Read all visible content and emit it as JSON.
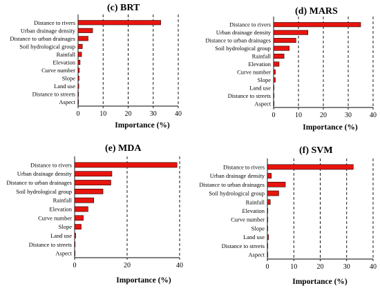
{
  "chart_data": [
    {
      "type": "bar",
      "orientation": "horizontal",
      "title": "(c) BRT",
      "xlabel": "Importance (%)",
      "xlim": [
        0,
        40
      ],
      "xticks": [
        0,
        10,
        20,
        30,
        40
      ],
      "grid": "vertical dashed",
      "categories": [
        "Distance to rivers",
        "Urban drainage density",
        "Distance to urban drainages",
        "Soil hydrological group",
        "Rainfall",
        "Elevation",
        "Curve number",
        "Slope",
        "Land use",
        "Distance to streets",
        "Aspect"
      ],
      "values": [
        33,
        5.8,
        4.0,
        1.7,
        1.4,
        0.8,
        0.5,
        0.4,
        0.3,
        0.15,
        0.1
      ]
    },
    {
      "type": "bar",
      "orientation": "horizontal",
      "title": "(d) MARS",
      "xlabel": "Importance (%)",
      "xlim": [
        0,
        40
      ],
      "xticks": [
        0,
        10,
        20,
        30,
        40
      ],
      "grid": "vertical dashed",
      "categories": [
        "Distance to rivers",
        "Urban drainage density",
        "Distance to urban drainages",
        "Soil hydrological group",
        "Rainfall",
        "Elevation",
        "Curve number",
        "Slope",
        "Land use",
        "Distance to streets",
        "Aspect"
      ],
      "values": [
        35,
        13.8,
        9.0,
        6.3,
        4.2,
        2.2,
        0.7,
        0.7,
        0.1,
        0.1,
        0.1
      ]
    },
    {
      "type": "bar",
      "orientation": "horizontal",
      "title": "(e) MDA",
      "xlabel": "Importance (%)",
      "xlim": [
        0,
        40
      ],
      "xticks": [
        0,
        20,
        40
      ],
      "grid": "vertical dashed",
      "categories": [
        "Distance to rivers",
        "Urban drainage density",
        "Distance to urban drainages",
        "Soil hydrological group",
        "Rainfall",
        "Elevation",
        "Curve number",
        "Slope",
        "Land use",
        "Distance to streets",
        "Aspect"
      ],
      "values": [
        39,
        14.2,
        13.8,
        10.8,
        7.3,
        5.1,
        3.3,
        2.5,
        0.4,
        0.2,
        0.1
      ]
    },
    {
      "type": "bar",
      "orientation": "horizontal",
      "title": "(f) SVM",
      "xlabel": "Importance (%)",
      "xlim": [
        0,
        40
      ],
      "xticks": [
        0,
        10,
        20,
        30,
        40
      ],
      "grid": "vertical dashed",
      "categories": [
        "Distance to rivers",
        "Urban drainage density",
        "Distance to urban drainages",
        "Soil hydrological group",
        "Rainfall",
        "Elevation",
        "Curve number",
        "Slope",
        "Land use",
        "Distance to streets",
        "Aspect"
      ],
      "values": [
        32.5,
        1.5,
        6.8,
        4.3,
        1.1,
        0.1,
        0.1,
        0.1,
        0.4,
        0.1,
        0.1
      ]
    }
  ]
}
